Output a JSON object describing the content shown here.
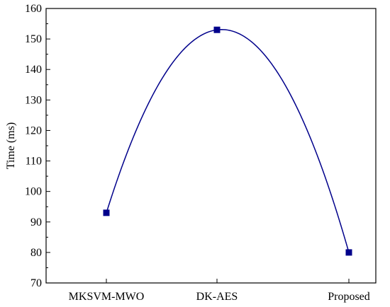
{
  "chart_data": {
    "type": "line",
    "title": "",
    "xlabel": "",
    "ylabel": "Time (ms)",
    "categories": [
      "MKSVM-MWO",
      "DK-AES",
      "Proposed"
    ],
    "series": [
      {
        "values": [
          93,
          153,
          80
        ],
        "color": "#00008b",
        "marker": "square",
        "smooth": true
      }
    ],
    "ylim": [
      70,
      160
    ],
    "yticks": [
      70,
      80,
      90,
      100,
      110,
      120,
      130,
      140,
      150,
      160
    ],
    "grid": false,
    "legend": "none"
  }
}
